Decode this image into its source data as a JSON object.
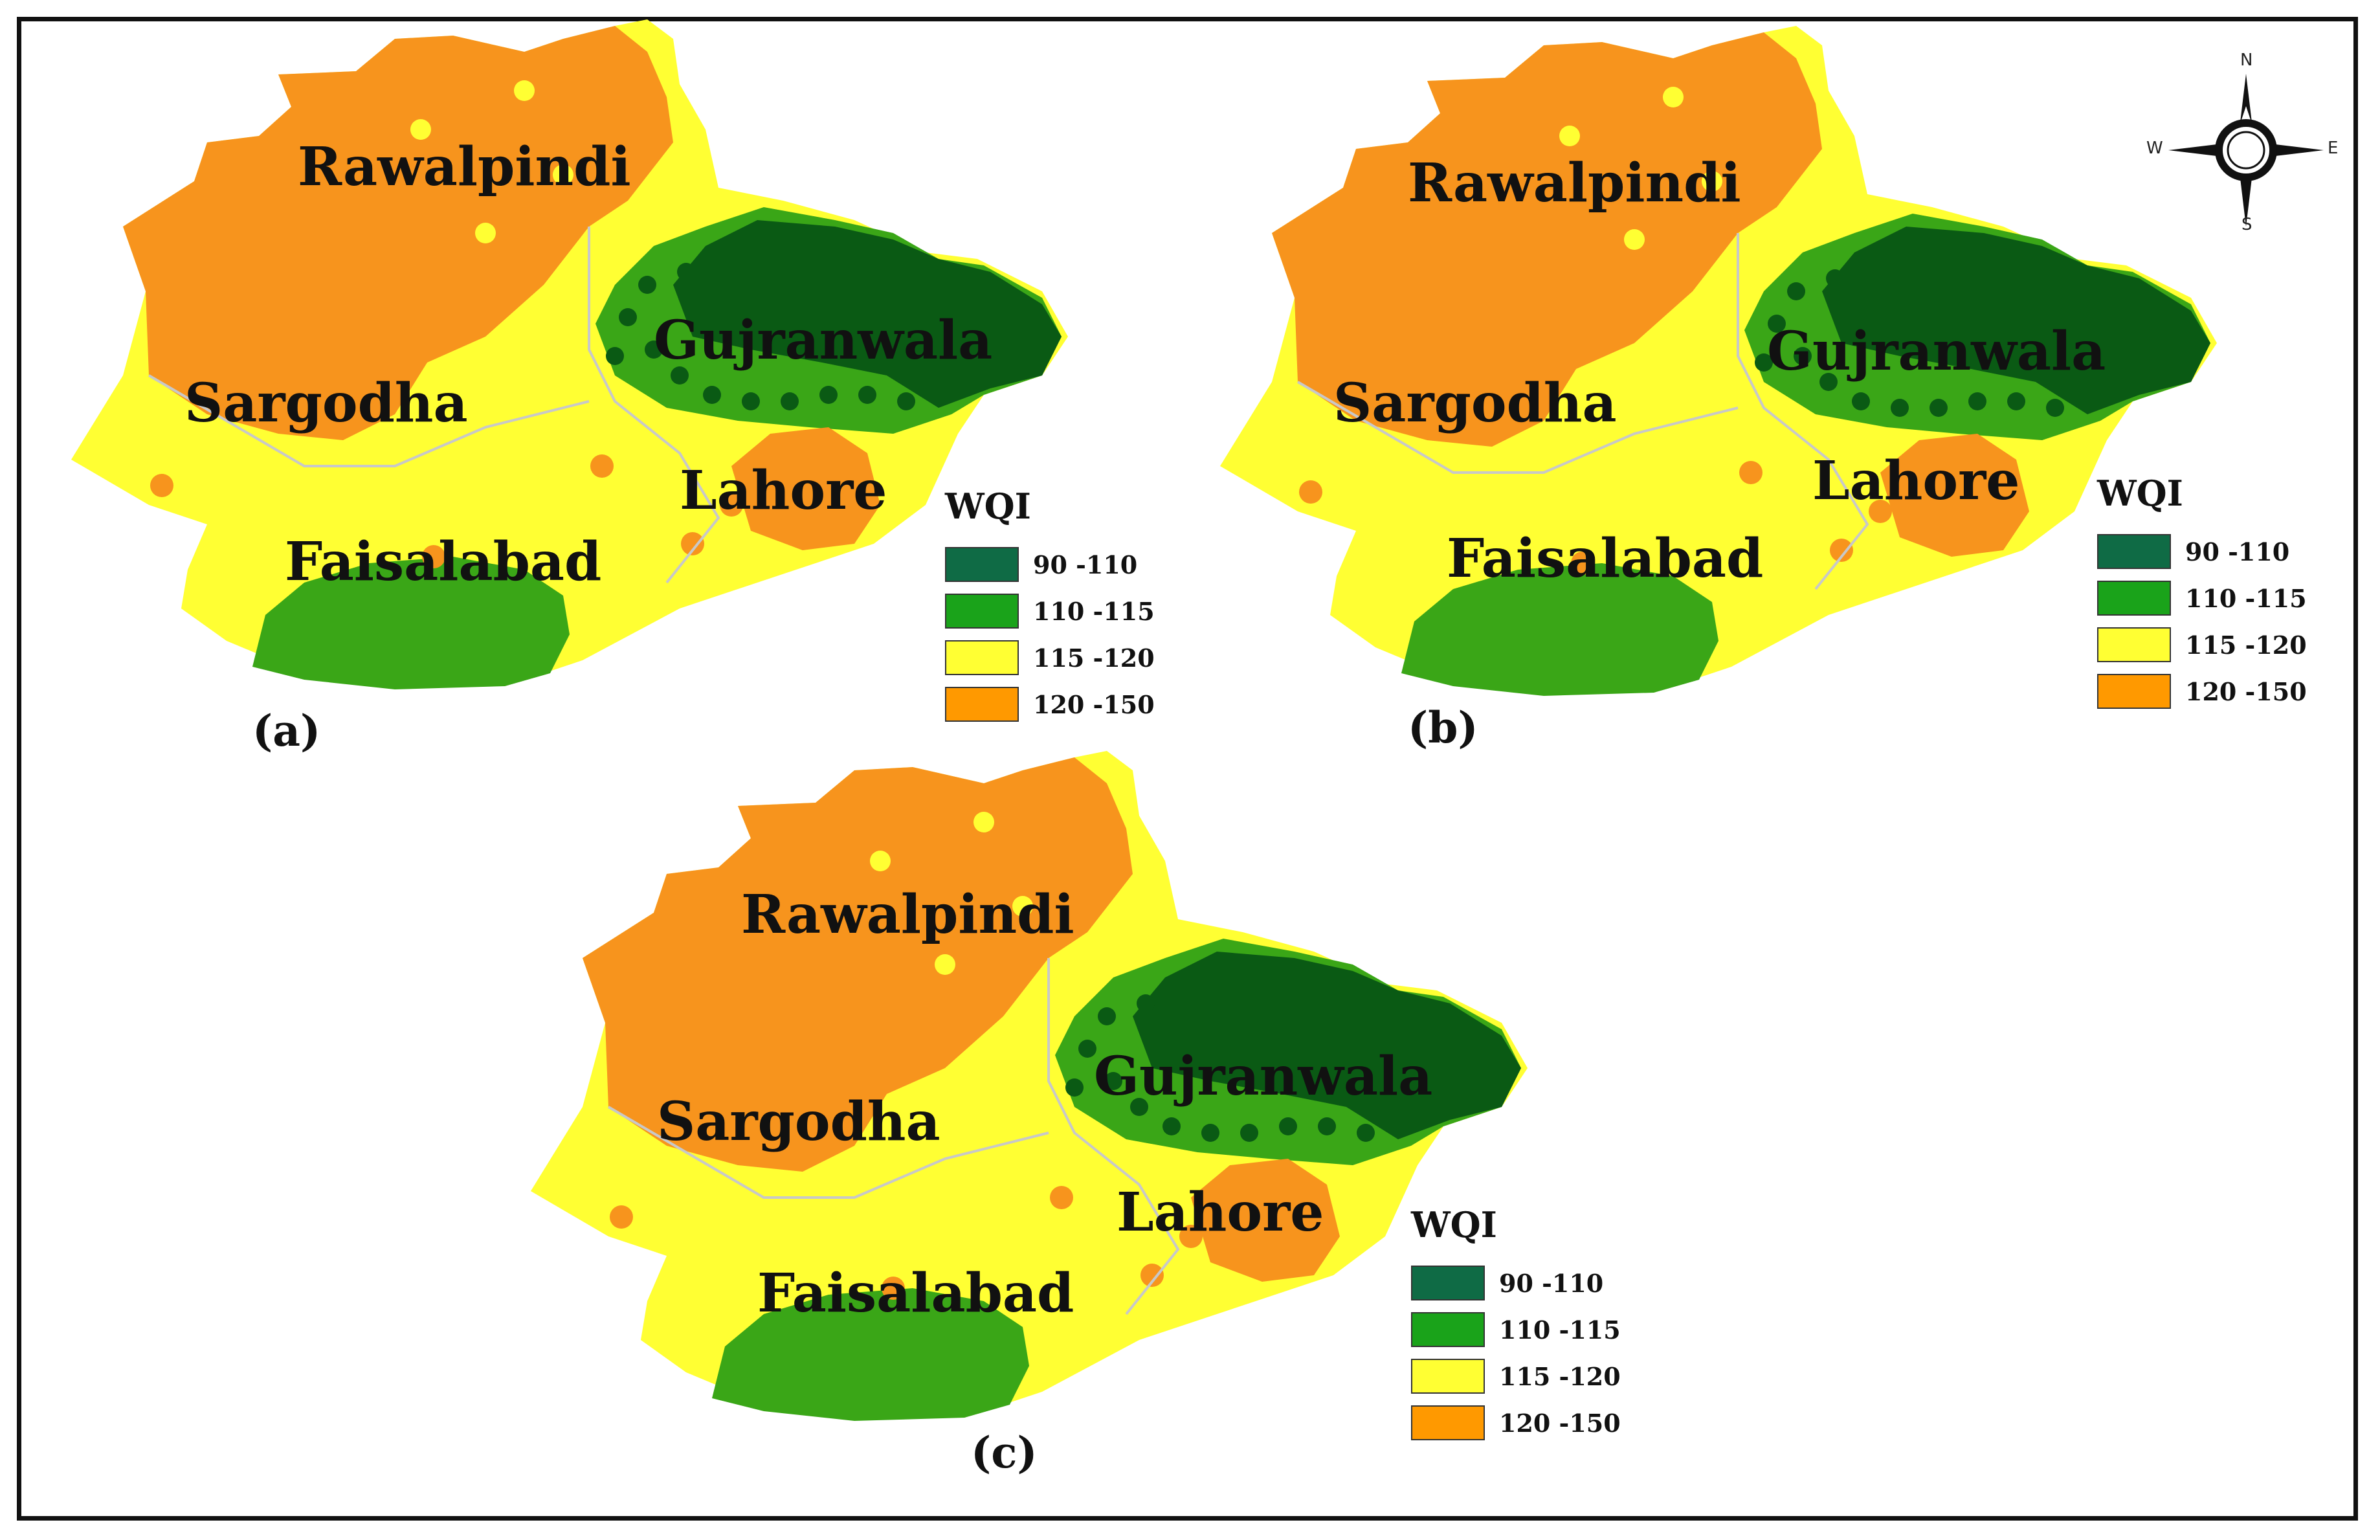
{
  "legend": {
    "title": "WQI",
    "classes": [
      {
        "label": "90 -110",
        "color": "#0f6b45"
      },
      {
        "label": "110 -115",
        "color": "#1aa31a"
      },
      {
        "label": "115 -120",
        "color": "#ffff33"
      },
      {
        "label": "120 -150",
        "color": "#ff9900"
      }
    ]
  },
  "colors": {
    "dark_green": "#0a5a14",
    "mid_green": "#3aa617",
    "yellow": "#ffff33",
    "orange": "#f7941d",
    "boundary": "#c8c8c8"
  },
  "regions": {
    "rawalpindi": "Rawalpindi",
    "sargodha": "Sargodha",
    "gujranwala": "Gujranwala",
    "lahore": "Lahore",
    "faisalabad": "Faisalabad"
  },
  "panels": [
    {
      "tag": "(a)"
    },
    {
      "tag": "(b)"
    },
    {
      "tag": "(c)"
    }
  ],
  "compass": {
    "n": "N",
    "s": "S",
    "e": "E",
    "w": "W",
    "icon": "north-arrow-icon"
  }
}
